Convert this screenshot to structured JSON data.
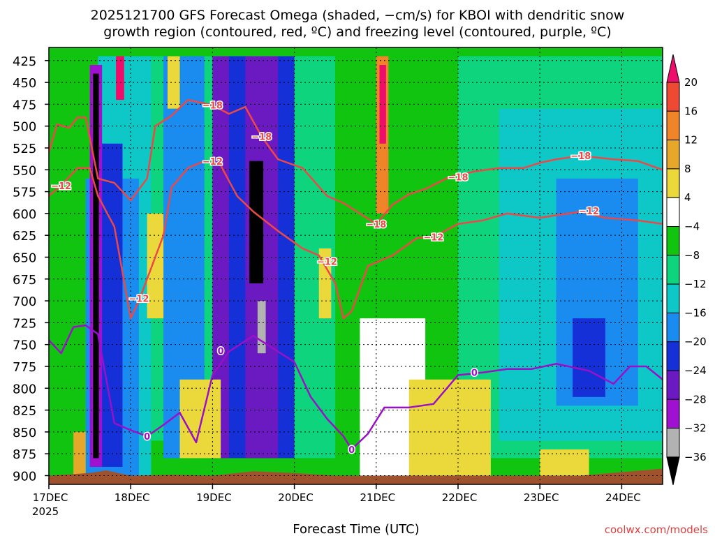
{
  "chart_data": {
    "type": "heatmap",
    "title_line1": "2025121700 GFS Forecast Omega (shaded, −cm/s) for KBOI with dendritic snow",
    "title_line2": "growth region (contoured, red, ºC) and freezing level (contoured, purple, ºC)",
    "xlabel": "Forecast Time (UTC)",
    "ylabel": "",
    "credit": "coolwx.com/models",
    "x_range": [
      0,
      7.5
    ],
    "y_range": [
      410,
      910
    ],
    "y_ticks": [
      425,
      450,
      475,
      500,
      525,
      550,
      575,
      600,
      625,
      650,
      675,
      700,
      725,
      750,
      775,
      800,
      825,
      850,
      875,
      900
    ],
    "x_ticks": [
      {
        "x": 0,
        "label": "17DEC",
        "sublabel": "2025"
      },
      {
        "x": 1,
        "label": "18DEC",
        "sublabel": ""
      },
      {
        "x": 2,
        "label": "19DEC",
        "sublabel": ""
      },
      {
        "x": 3,
        "label": "20DEC",
        "sublabel": ""
      },
      {
        "x": 4,
        "label": "21DEC",
        "sublabel": ""
      },
      {
        "x": 5,
        "label": "22DEC",
        "sublabel": ""
      },
      {
        "x": 6,
        "label": "23DEC",
        "sublabel": ""
      },
      {
        "x": 7,
        "label": "24DEC",
        "sublabel": ""
      }
    ],
    "grid": true,
    "colorbar": {
      "placement": "right",
      "labels": [
        "20",
        "16",
        "12",
        "8",
        "4",
        "−4",
        "−8",
        "−12",
        "−16",
        "−20",
        "−24",
        "−28",
        "−32",
        "−36"
      ],
      "bins": [
        {
          "color": "#ee0d6a"
        },
        {
          "color": "#ee4a33"
        },
        {
          "color": "#f08428"
        },
        {
          "color": "#e5a82b"
        },
        {
          "color": "#ebd93c"
        },
        {
          "color": "#ffffff"
        },
        {
          "color": "#11c410"
        },
        {
          "color": "#0ed47e"
        },
        {
          "color": "#0ec8c8"
        },
        {
          "color": "#1a8cf0"
        },
        {
          "color": "#1630d8"
        },
        {
          "color": "#6a1ac0"
        },
        {
          "color": "#a010d0"
        },
        {
          "color": "#b2b2b2"
        },
        {
          "color": "#000000"
        }
      ]
    },
    "omega_bands": [
      {
        "x0": 0.0,
        "x1": 0.6,
        "y0": 420,
        "y1": 900,
        "bin": 6
      },
      {
        "x0": 0.6,
        "x1": 1.25,
        "y0": 420,
        "y1": 900,
        "bin": 8
      },
      {
        "x0": 1.25,
        "x1": 2.0,
        "y0": 420,
        "y1": 860,
        "bin": 7
      },
      {
        "x0": 2.0,
        "x1": 3.0,
        "y0": 420,
        "y1": 880,
        "bin": 10
      },
      {
        "x0": 3.0,
        "x1": 3.5,
        "y0": 420,
        "y1": 880,
        "bin": 7
      },
      {
        "x0": 3.5,
        "x1": 4.2,
        "y0": 420,
        "y1": 700,
        "bin": 6
      },
      {
        "x0": 3.8,
        "x1": 4.6,
        "y0": 720,
        "y1": 900,
        "bin": 5
      },
      {
        "x0": 4.2,
        "x1": 5.0,
        "y0": 420,
        "y1": 600,
        "bin": 6
      },
      {
        "x0": 5.0,
        "x1": 7.5,
        "y0": 420,
        "y1": 880,
        "bin": 7
      },
      {
        "x0": 5.5,
        "x1": 7.5,
        "y0": 480,
        "y1": 860,
        "bin": 8
      },
      {
        "x0": 6.2,
        "x1": 7.2,
        "y0": 560,
        "y1": 820,
        "bin": 9
      },
      {
        "x0": 6.4,
        "x1": 6.8,
        "y0": 720,
        "y1": 810,
        "bin": 10
      },
      {
        "x0": 0.45,
        "x1": 1.1,
        "y0": 560,
        "y1": 900,
        "bin": 9
      },
      {
        "x0": 0.55,
        "x1": 0.9,
        "y0": 520,
        "y1": 890,
        "bin": 10
      },
      {
        "x0": 0.5,
        "x1": 0.65,
        "y0": 430,
        "y1": 890,
        "bin": 12
      },
      {
        "x0": 0.54,
        "x1": 0.61,
        "y0": 440,
        "y1": 880,
        "bin": 14
      },
      {
        "x0": 0.82,
        "x1": 0.92,
        "y0": 420,
        "y1": 470,
        "bin": 0
      },
      {
        "x0": 1.4,
        "x1": 1.9,
        "y0": 420,
        "y1": 880,
        "bin": 9
      },
      {
        "x0": 2.0,
        "x1": 2.2,
        "y0": 420,
        "y1": 880,
        "bin": 11
      },
      {
        "x0": 2.4,
        "x1": 2.8,
        "y0": 420,
        "y1": 880,
        "bin": 11
      },
      {
        "x0": 2.45,
        "x1": 2.62,
        "y0": 540,
        "y1": 680,
        "bin": 14
      },
      {
        "x0": 2.55,
        "x1": 2.65,
        "y0": 700,
        "y1": 760,
        "bin": 13
      },
      {
        "x0": 4.0,
        "x1": 4.15,
        "y0": 420,
        "y1": 600,
        "bin": 2
      },
      {
        "x0": 4.04,
        "x1": 4.12,
        "y0": 430,
        "y1": 520,
        "bin": 0
      },
      {
        "x0": 1.2,
        "x1": 1.4,
        "y0": 600,
        "y1": 720,
        "bin": 4
      },
      {
        "x0": 1.6,
        "x1": 2.1,
        "y0": 790,
        "y1": 880,
        "bin": 4
      },
      {
        "x0": 0.3,
        "x1": 0.45,
        "y0": 850,
        "y1": 900,
        "bin": 3
      },
      {
        "x0": 4.4,
        "x1": 5.4,
        "y0": 790,
        "y1": 900,
        "bin": 4
      },
      {
        "x0": 1.45,
        "x1": 1.6,
        "y0": 420,
        "y1": 480,
        "bin": 4
      },
      {
        "x0": 3.3,
        "x1": 3.45,
        "y0": 640,
        "y1": 720,
        "bin": 4
      },
      {
        "x0": 6.0,
        "x1": 6.6,
        "y0": 870,
        "y1": 900,
        "bin": 4
      }
    ],
    "terrain_color": "#a0522d",
    "terrain": [
      [
        0,
        900
      ],
      [
        0.5,
        897
      ],
      [
        0.7,
        894
      ],
      [
        1.0,
        900
      ],
      [
        1.5,
        899
      ],
      [
        2.0,
        900
      ],
      [
        2.5,
        895
      ],
      [
        3.0,
        897
      ],
      [
        3.5,
        900
      ],
      [
        4.5,
        900
      ],
      [
        5.5,
        900
      ],
      [
        6.5,
        900
      ],
      [
        7.5,
        892
      ]
    ],
    "contours": [
      {
        "name": "-18 (upper)",
        "color": "#ec4848",
        "line_label": "−18",
        "label_points": [
          [
            2.0,
            476
          ],
          [
            2.6,
            512
          ],
          [
            4.0,
            612
          ],
          [
            5.0,
            558
          ],
          [
            6.5,
            534
          ]
        ],
        "points": [
          [
            0,
            530
          ],
          [
            0.1,
            498
          ],
          [
            0.25,
            502
          ],
          [
            0.35,
            490
          ],
          [
            0.45,
            490
          ],
          [
            0.6,
            560
          ],
          [
            0.8,
            565
          ],
          [
            1.0,
            585
          ],
          [
            1.2,
            560
          ],
          [
            1.3,
            500
          ],
          [
            1.5,
            488
          ],
          [
            1.7,
            470
          ],
          [
            2.0,
            476
          ],
          [
            2.2,
            486
          ],
          [
            2.4,
            478
          ],
          [
            2.6,
            512
          ],
          [
            2.8,
            538
          ],
          [
            3.1,
            548
          ],
          [
            3.4,
            580
          ],
          [
            3.6,
            588
          ],
          [
            3.8,
            600
          ],
          [
            4.0,
            612
          ],
          [
            4.2,
            590
          ],
          [
            4.4,
            578
          ],
          [
            4.6,
            572
          ],
          [
            4.9,
            558
          ],
          [
            5.2,
            552
          ],
          [
            5.5,
            548
          ],
          [
            5.8,
            548
          ],
          [
            6.0,
            542
          ],
          [
            6.2,
            538
          ],
          [
            6.5,
            534
          ],
          [
            6.9,
            538
          ],
          [
            7.2,
            540
          ],
          [
            7.5,
            550
          ]
        ]
      },
      {
        "name": "-12 (upper)",
        "color": "#ec4848",
        "line_label": "−12",
        "label_points": [
          [
            0.15,
            568
          ],
          [
            2.0,
            540
          ],
          [
            3.4,
            655
          ],
          [
            4.7,
            627
          ],
          [
            6.6,
            597
          ],
          [
            1.1,
            697
          ]
        ],
        "points": [
          [
            0,
            580
          ],
          [
            0.15,
            568
          ],
          [
            0.35,
            548
          ],
          [
            0.5,
            548
          ],
          [
            0.6,
            580
          ],
          [
            0.8,
            615
          ],
          [
            1.0,
            720
          ],
          [
            1.1,
            700
          ],
          [
            1.3,
            650
          ],
          [
            1.4,
            625
          ],
          [
            1.5,
            570
          ],
          [
            1.7,
            548
          ],
          [
            1.9,
            540
          ],
          [
            2.1,
            545
          ],
          [
            2.3,
            580
          ],
          [
            2.5,
            598
          ],
          [
            2.8,
            620
          ],
          [
            3.1,
            640
          ],
          [
            3.3,
            648
          ],
          [
            3.5,
            680
          ],
          [
            3.6,
            720
          ],
          [
            3.7,
            712
          ],
          [
            3.9,
            660
          ],
          [
            4.2,
            648
          ],
          [
            4.5,
            628
          ],
          [
            4.7,
            627
          ],
          [
            5.0,
            612
          ],
          [
            5.3,
            608
          ],
          [
            5.6,
            600
          ],
          [
            6.0,
            605
          ],
          [
            6.2,
            602
          ],
          [
            6.5,
            598
          ],
          [
            6.8,
            605
          ],
          [
            7.2,
            608
          ],
          [
            7.5,
            612
          ]
        ]
      },
      {
        "name": "0 freezing level",
        "color": "#9a10c8",
        "line_label": "0",
        "label_points": [
          [
            1.2,
            855
          ],
          [
            2.1,
            757
          ],
          [
            3.7,
            870
          ],
          [
            5.2,
            782
          ]
        ],
        "points": [
          [
            0,
            745
          ],
          [
            0.15,
            760
          ],
          [
            0.3,
            730
          ],
          [
            0.45,
            728
          ],
          [
            0.6,
            738
          ],
          [
            0.8,
            840
          ],
          [
            1.0,
            848
          ],
          [
            1.2,
            855
          ],
          [
            1.4,
            842
          ],
          [
            1.6,
            828
          ],
          [
            1.8,
            862
          ],
          [
            2.0,
            785
          ],
          [
            2.2,
            758
          ],
          [
            2.5,
            740
          ],
          [
            2.8,
            758
          ],
          [
            3.0,
            770
          ],
          [
            3.2,
            810
          ],
          [
            3.4,
            835
          ],
          [
            3.6,
            855
          ],
          [
            3.7,
            870
          ],
          [
            3.9,
            852
          ],
          [
            4.1,
            822
          ],
          [
            4.4,
            822
          ],
          [
            4.7,
            818
          ],
          [
            5.0,
            785
          ],
          [
            5.3,
            782
          ],
          [
            5.6,
            778
          ],
          [
            5.9,
            778
          ],
          [
            6.2,
            772
          ],
          [
            6.6,
            780
          ],
          [
            6.9,
            795
          ],
          [
            7.1,
            775
          ],
          [
            7.3,
            775
          ],
          [
            7.5,
            790
          ]
        ]
      }
    ]
  }
}
